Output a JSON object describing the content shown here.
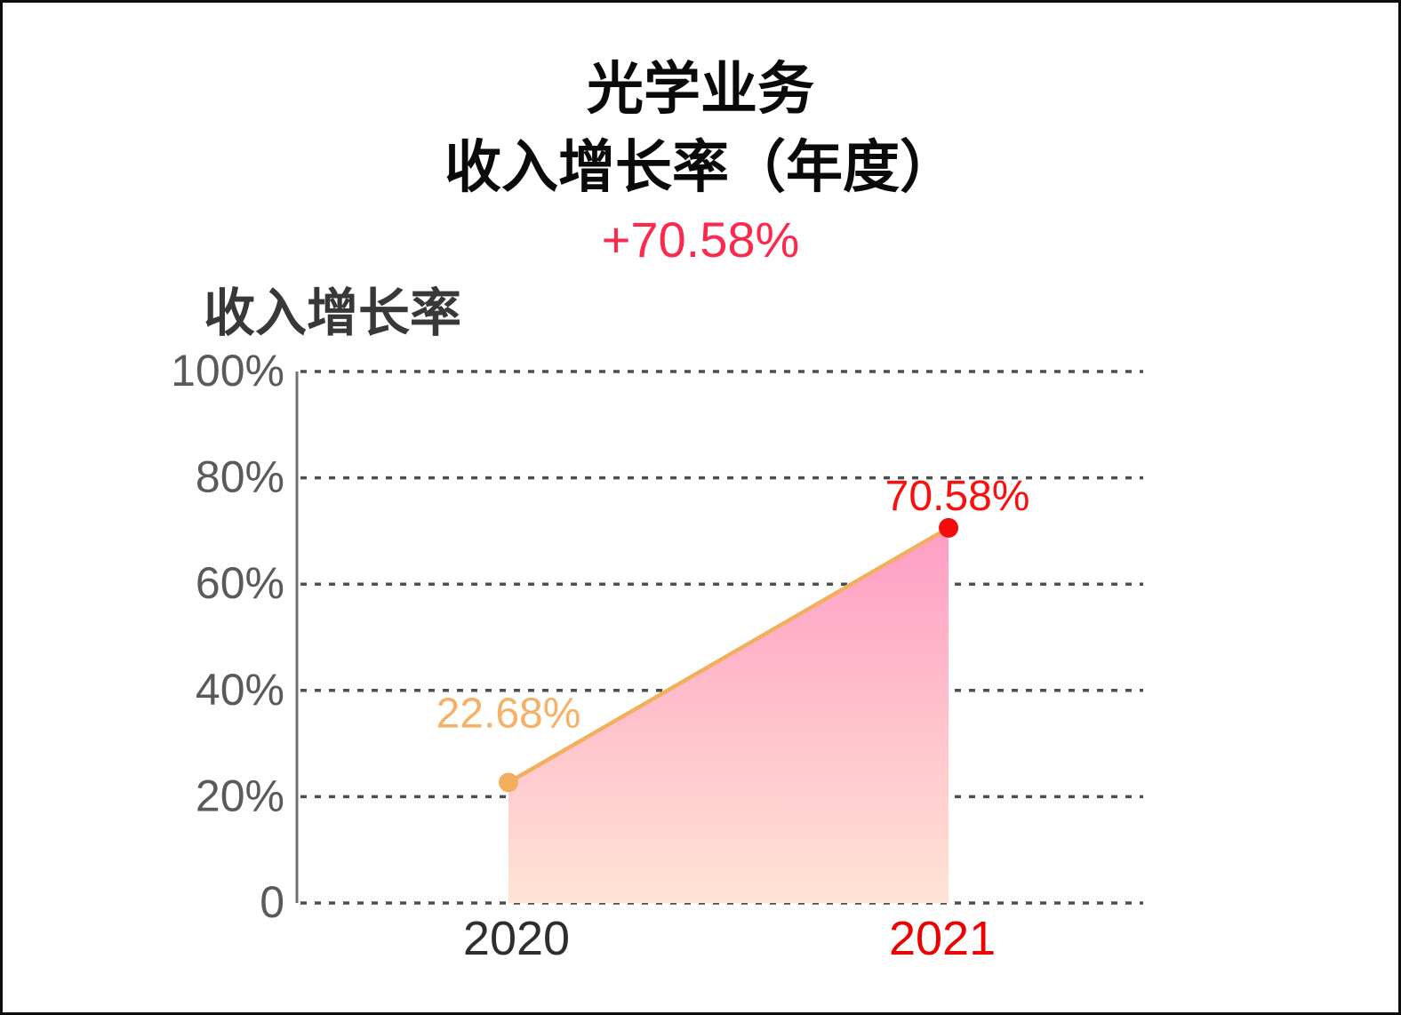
{
  "header": {
    "title_line1": "光学业务",
    "title_line2": "收入增长率（年度）",
    "change_label": "+70.58%"
  },
  "legend": {
    "label": "收入增长率"
  },
  "chart_data": {
    "type": "area",
    "title": "光学业务 收入增长率（年度）",
    "series_name": "收入增长率",
    "categories": [
      "2020",
      "2021"
    ],
    "series": [
      {
        "name": "收入增长率",
        "values": [
          22.68,
          70.58
        ]
      }
    ],
    "point_labels": [
      "22.68%",
      "70.58%"
    ],
    "ylim": [
      0,
      100
    ],
    "y_ticks": [
      {
        "label": "100%",
        "value": 100
      },
      {
        "label": "80%",
        "value": 80
      },
      {
        "label": "60%",
        "value": 60
      },
      {
        "label": "40%",
        "value": 40
      },
      {
        "label": "20%",
        "value": 20
      },
      {
        "label": "0",
        "value": 0
      }
    ],
    "grid": "horizontal-dashed",
    "legend_position": "top-left",
    "colors": {
      "line": "#F2B05E",
      "points": [
        "#F2B05E",
        "#F20D0D"
      ],
      "point_labels": [
        "#F4B167",
        "#FA0F0F"
      ],
      "x_labels": [
        "#2E2E2E",
        "#EE0000"
      ],
      "area_top": "#FF9DC4",
      "area_bottom": "#FFE4D4",
      "grid": "#4E4E4E",
      "axis": "#707070",
      "y_tick": "#5A5A5A",
      "header_change": "#FB2A4D",
      "title": "#0A0A0A"
    }
  }
}
